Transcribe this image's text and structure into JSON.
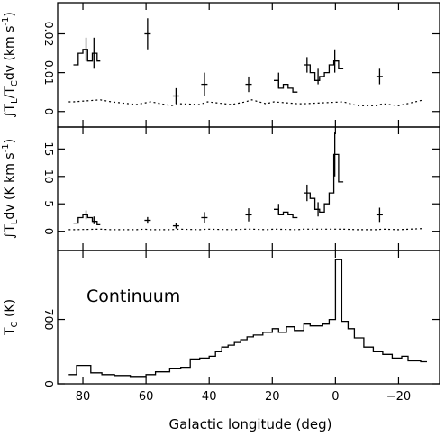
{
  "chart_data": [
    {
      "type": "line",
      "panel": "top",
      "ylabel": "∫T_L/T_C dv (km s⁻¹)",
      "ylabel_parts": [
        "∫T",
        "L",
        "/T",
        "C",
        "dv (km s",
        "-1",
        ")"
      ],
      "ylim": [
        -0.004,
        0.028
      ],
      "yticks": [
        0,
        0.01,
        0.02
      ],
      "ytick_labels": [
        "0",
        "0.01",
        "0.02"
      ],
      "series": [
        {
          "style": "steps-solid",
          "segments": [
            {
              "edges": [
                83,
                81.5,
                80,
                78.5,
                77,
                75.5,
                74.5
              ],
              "values": [
                0.012,
                0.015,
                0.016,
                0.013,
                0.015,
                0.013
              ]
            },
            {
              "edges": [
                60.5,
                58.5
              ],
              "values": [
                0.02
              ]
            },
            {
              "edges": [
                51.5,
                49.5
              ],
              "values": [
                0.004
              ]
            },
            {
              "edges": [
                42.5,
                40.5
              ],
              "values": [
                0.007
              ]
            },
            {
              "edges": [
                28.5,
                26.5
              ],
              "values": [
                0.007
              ]
            },
            {
              "edges": [
                19.5,
                18,
                16.5,
                15,
                13.5,
                12
              ],
              "values": [
                0.008,
                0.006,
                0.007,
                0.006,
                0.005
              ]
            },
            {
              "edges": [
                10,
                8,
                6.5,
                5,
                3.5,
                2,
                0.5,
                -1,
                -2.5
              ],
              "values": [
                0.012,
                0.01,
                0.008,
                0.009,
                0.01,
                0.012,
                0.013,
                0.011
              ]
            },
            {
              "edges": [
                -13,
                -15
              ],
              "values": [
                0.009
              ]
            }
          ]
        },
        {
          "style": "dotted",
          "points": [
            [
              84.5,
              0.0025
            ],
            [
              83,
              0.0025
            ],
            [
              74.5,
              0.003
            ],
            [
              71,
              0.0025
            ],
            [
              63,
              0.0018
            ],
            [
              60.5,
              0.0022
            ],
            [
              58.5,
              0.0025
            ],
            [
              52,
              0.0015
            ],
            [
              49.5,
              0.002
            ],
            [
              43,
              0.0018
            ],
            [
              40.5,
              0.0025
            ],
            [
              33,
              0.0018
            ],
            [
              28.5,
              0.0025
            ],
            [
              26.5,
              0.003
            ],
            [
              22,
              0.002
            ],
            [
              19.5,
              0.0025
            ],
            [
              12,
              0.002
            ],
            [
              10,
              0.002
            ],
            [
              -2.5,
              0.0025
            ],
            [
              -7,
              0.0015
            ],
            [
              -13,
              0.0015
            ],
            [
              -15,
              0.002
            ],
            [
              -20,
              0.0015
            ],
            [
              -28,
              0.003
            ]
          ]
        }
      ],
      "error_bars": [
        [
          79,
          0.016,
          0.003
        ],
        [
          76.5,
          0.015,
          0.004
        ],
        [
          59.5,
          0.02,
          0.004
        ],
        [
          50.5,
          0.004,
          0.002
        ],
        [
          41.5,
          0.007,
          0.003
        ],
        [
          27.5,
          0.007,
          0.002
        ],
        [
          18,
          0.008,
          0.002
        ],
        [
          9,
          0.012,
          0.002
        ],
        [
          5.5,
          0.009,
          0.002
        ],
        [
          0.2,
          0.013,
          0.003
        ],
        [
          -14,
          0.009,
          0.002
        ]
      ]
    },
    {
      "type": "line",
      "panel": "middle",
      "ylabel": "∫T_L dv (K km s⁻¹)",
      "ylabel_parts": [
        "∫T",
        "L",
        "dv (K km s",
        "-1",
        ")"
      ],
      "ylim": [
        -3.5,
        19
      ],
      "yticks": [
        0,
        5,
        10,
        15
      ],
      "ytick_labels": [
        "0",
        "5",
        "10",
        "15"
      ],
      "series": [
        {
          "style": "steps-solid",
          "segments": [
            {
              "edges": [
                83,
                81.5,
                80,
                78.5,
                77,
                75.5,
                74.5
              ],
              "values": [
                1.5,
                2.5,
                3.0,
                2.5,
                1.8,
                1.2
              ]
            },
            {
              "edges": [
                60.5,
                58.5
              ],
              "values": [
                2.0
              ]
            },
            {
              "edges": [
                51.5,
                49.5
              ],
              "values": [
                1.0
              ]
            },
            {
              "edges": [
                42.5,
                40.5
              ],
              "values": [
                2.5
              ]
            },
            {
              "edges": [
                28.5,
                26.5
              ],
              "values": [
                3.0
              ]
            },
            {
              "edges": [
                19.5,
                18,
                16.5,
                15,
                13.5,
                12
              ],
              "values": [
                4.0,
                3.0,
                3.5,
                3.0,
                2.5
              ]
            },
            {
              "edges": [
                10,
                8,
                6.5,
                5,
                3.5,
                2,
                0.5,
                -1,
                -2.5
              ],
              "values": [
                7.0,
                6.0,
                4.0,
                3.5,
                5.0,
                7.0,
                14.0,
                9.0
              ]
            },
            {
              "edges": [
                -13,
                -15
              ],
              "values": [
                3.0
              ]
            }
          ]
        },
        {
          "style": "dotted",
          "points": [
            [
              84.5,
              0.3
            ],
            [
              83,
              0.3
            ],
            [
              74.5,
              0.4
            ],
            [
              71,
              0.3
            ],
            [
              63,
              0.3
            ],
            [
              60.5,
              0.4
            ],
            [
              58.5,
              0.3
            ],
            [
              52,
              0.3
            ],
            [
              49.5,
              0.4
            ],
            [
              43,
              0.3
            ],
            [
              40.5,
              0.4
            ],
            [
              33,
              0.3
            ],
            [
              28.5,
              0.4
            ],
            [
              26.5,
              0.4
            ],
            [
              22,
              0.3
            ],
            [
              19.5,
              0.4
            ],
            [
              12,
              0.3
            ],
            [
              10,
              0.4
            ],
            [
              -2.5,
              0.4
            ],
            [
              -7,
              0.3
            ],
            [
              -13,
              0.3
            ],
            [
              -15,
              0.4
            ],
            [
              -20,
              0.3
            ],
            [
              -28,
              0.5
            ]
          ]
        }
      ],
      "error_bars": [
        [
          79,
          3.0,
          0.8
        ],
        [
          76.5,
          2.0,
          0.7
        ],
        [
          59.5,
          2.0,
          0.6
        ],
        [
          50.5,
          1.0,
          0.5
        ],
        [
          41.5,
          2.5,
          1.0
        ],
        [
          27.5,
          3.0,
          1.2
        ],
        [
          18,
          4.0,
          1.0
        ],
        [
          9,
          7.0,
          1.5
        ],
        [
          5.5,
          4.0,
          1.3
        ],
        [
          0.2,
          14.0,
          4.0
        ],
        [
          -14,
          3.0,
          1.3
        ]
      ]
    },
    {
      "type": "line",
      "panel": "bottom",
      "ylabel": "T_C (K)",
      "ylabel_parts": [
        "T",
        "C",
        " (K)"
      ],
      "annotation": "Continuum",
      "ylim": [
        0,
        1450
      ],
      "yticks": [
        0,
        700
      ],
      "ytick_labels": [
        "0",
        "700"
      ],
      "xlabel": "Galactic longitude (deg)",
      "xlim": [
        88,
        -33
      ],
      "xticks": [
        80,
        60,
        40,
        20,
        0,
        -20
      ],
      "xtick_labels": [
        "80",
        "60",
        "40",
        "20",
        "0",
        "−20"
      ],
      "series": [
        {
          "style": "steps-solid",
          "edges": [
            84.5,
            82,
            77.5,
            74,
            70,
            65,
            60,
            57,
            52.5,
            49,
            46,
            43,
            40,
            38,
            36,
            34,
            32,
            30,
            28,
            26,
            23,
            20,
            18,
            15.5,
            13,
            10,
            8,
            4,
            2,
            0,
            -2,
            -4,
            -6,
            -9,
            -12,
            -15,
            -18,
            -21,
            -23,
            -27,
            -29
          ],
          "values": [
            100,
            200,
            120,
            100,
            90,
            80,
            100,
            130,
            170,
            180,
            270,
            280,
            300,
            350,
            400,
            420,
            450,
            480,
            510,
            530,
            560,
            600,
            560,
            620,
            580,
            650,
            630,
            650,
            700,
            1350,
            680,
            600,
            500,
            400,
            350,
            320,
            280,
            300,
            250,
            240
          ]
        }
      ]
    }
  ]
}
